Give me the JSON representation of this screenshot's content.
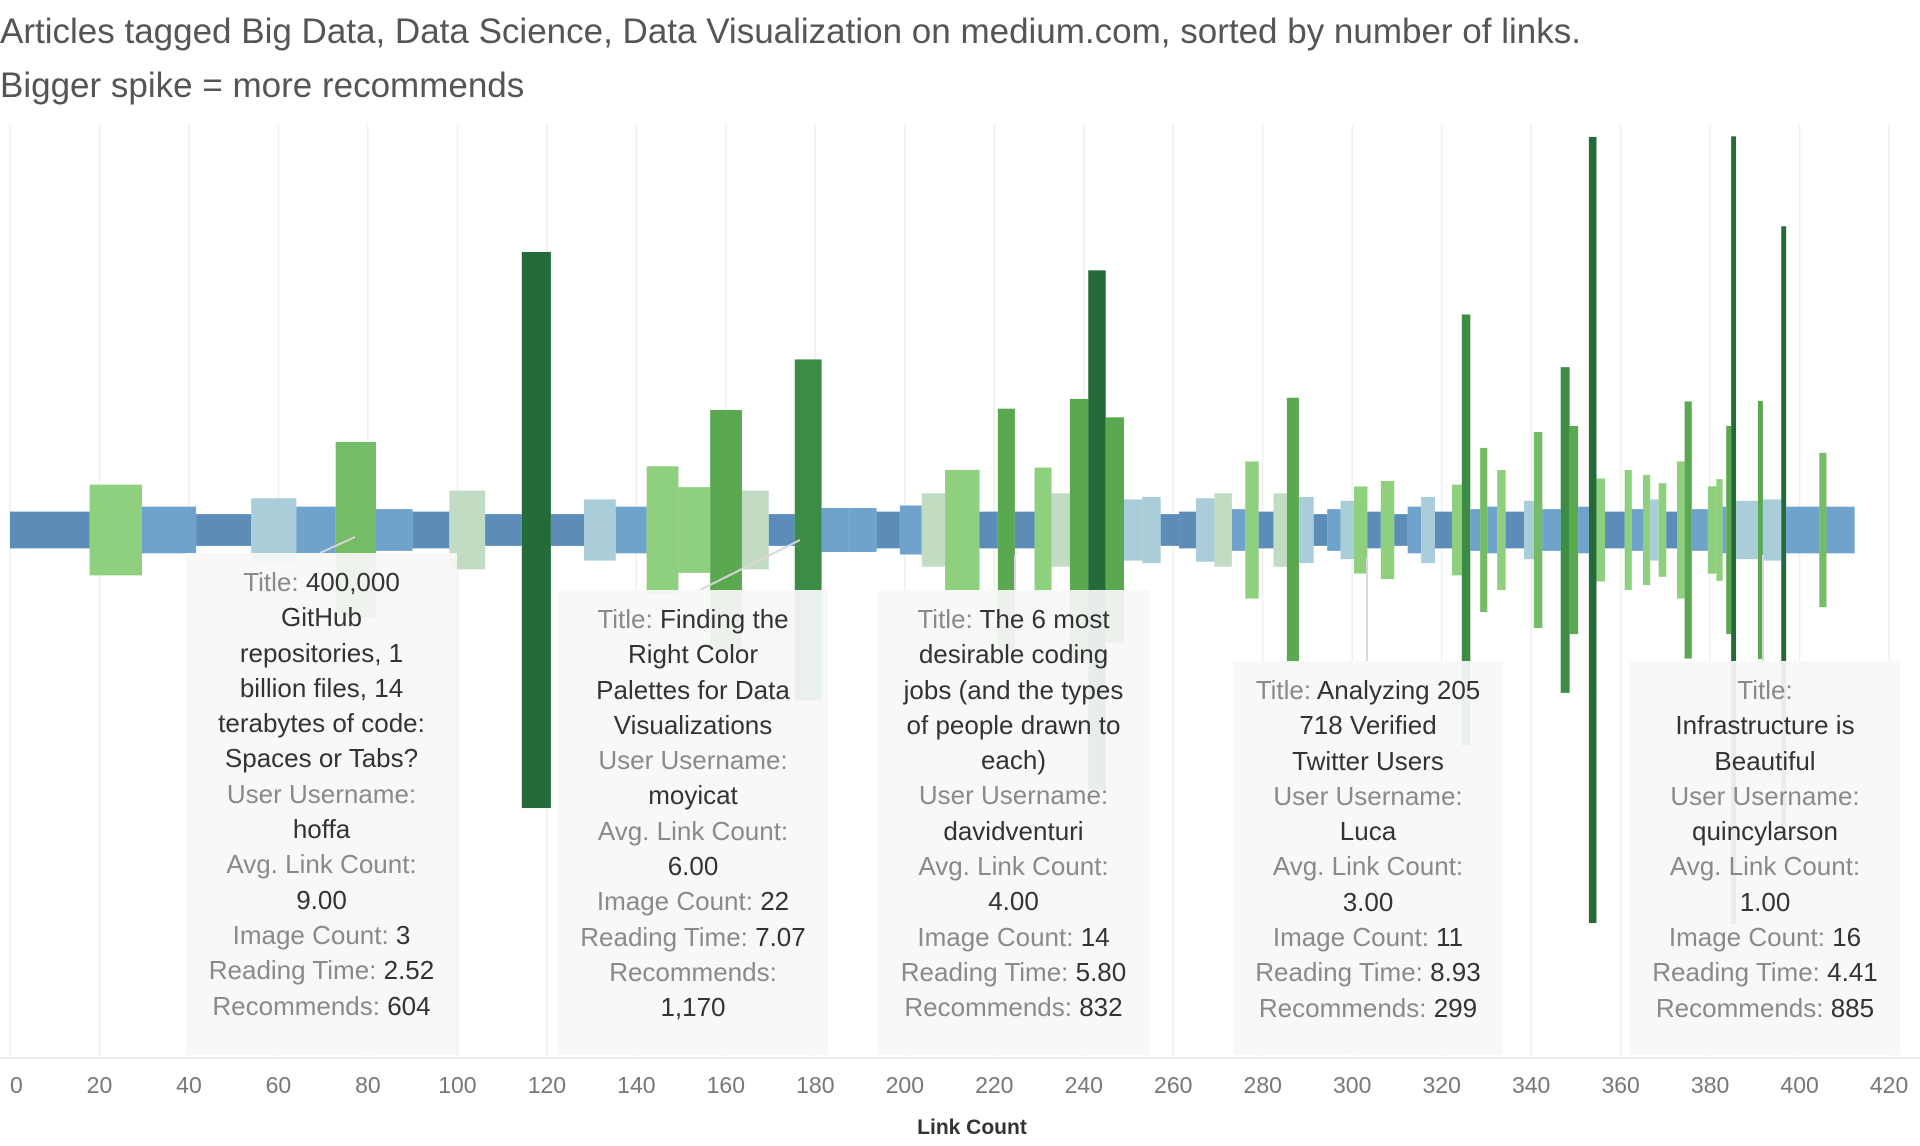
{
  "chart_data": {
    "type": "bar",
    "title": "Articles tagged Big Data, Data Science, Data Visualization on medium.com, sorted by number of links.",
    "subtitle": "Bigger spike = more recommends",
    "xlabel": "Link Count",
    "xlim": [
      0,
      420
    ],
    "xticks": [
      0,
      20,
      40,
      60,
      80,
      100,
      120,
      140,
      160,
      180,
      200,
      220,
      240,
      260,
      280,
      300,
      320,
      340,
      360,
      380,
      400,
      420
    ],
    "grid": "vertical",
    "encoding": "bars centered on baseline; height and color = recommends (blue low, green high)",
    "bars_fields": [
      "link_count_start",
      "link_count_end",
      "recommends"
    ],
    "bars": [
      [
        0,
        17.8,
        126
      ],
      [
        17.8,
        29.5,
        311
      ],
      [
        29.5,
        41.6,
        160
      ],
      [
        41.6,
        53.9,
        109
      ],
      [
        53.9,
        64.0,
        218
      ],
      [
        64.0,
        72.8,
        160
      ],
      [
        72.8,
        81.8,
        604
      ],
      [
        81.8,
        90.0,
        143
      ],
      [
        90.0,
        98.2,
        126
      ],
      [
        98.2,
        106.2,
        270
      ],
      [
        106.2,
        114.4,
        109
      ],
      [
        114.4,
        120.9,
        1907
      ],
      [
        120.9,
        128.3,
        109
      ],
      [
        128.3,
        135.4,
        210
      ],
      [
        135.4,
        142.3,
        160
      ],
      [
        142.3,
        149.4,
        437
      ],
      [
        149.4,
        156.5,
        294
      ],
      [
        156.5,
        163.6,
        823
      ],
      [
        163.6,
        169.6,
        270
      ],
      [
        169.6,
        175.4,
        109
      ],
      [
        175.4,
        181.4,
        1170
      ],
      [
        181.4,
        187.7,
        151
      ],
      [
        187.7,
        193.7,
        151
      ],
      [
        193.7,
        198.9,
        126
      ],
      [
        198.9,
        203.8,
        168
      ],
      [
        203.8,
        209.0,
        252
      ],
      [
        209.0,
        216.7,
        412
      ],
      [
        216.7,
        220.8,
        126
      ],
      [
        220.8,
        224.6,
        832
      ],
      [
        224.6,
        229.0,
        126
      ],
      [
        229.0,
        232.8,
        428
      ],
      [
        232.8,
        236.9,
        252
      ],
      [
        236.9,
        241.0,
        899
      ],
      [
        241.0,
        244.9,
        1781
      ],
      [
        244.9,
        249.0,
        773
      ],
      [
        249.0,
        253.1,
        210
      ],
      [
        253.1,
        257.2,
        227
      ],
      [
        257.2,
        261.3,
        109
      ],
      [
        261.3,
        265.1,
        126
      ],
      [
        265.1,
        269.2,
        218
      ],
      [
        269.2,
        273.1,
        252
      ],
      [
        273.1,
        276.1,
        143
      ],
      [
        276.1,
        279.1,
        470
      ],
      [
        279.1,
        282.4,
        126
      ],
      [
        282.4,
        285.4,
        252
      ],
      [
        285.4,
        288.1,
        907
      ],
      [
        288.1,
        291.4,
        227
      ],
      [
        291.4,
        294.4,
        109
      ],
      [
        294.4,
        297.4,
        143
      ],
      [
        297.4,
        300.4,
        200
      ],
      [
        300.4,
        303.4,
        299
      ],
      [
        303.4,
        306.4,
        126
      ],
      [
        306.4,
        309.4,
        336
      ],
      [
        309.4,
        312.4,
        109
      ],
      [
        312.4,
        315.4,
        160
      ],
      [
        315.4,
        318.5,
        227
      ],
      [
        318.5,
        322.3,
        126
      ],
      [
        322.3,
        324.5,
        311
      ],
      [
        324.5,
        326.4,
        1478
      ],
      [
        326.4,
        328.6,
        143
      ],
      [
        328.6,
        330.2,
        563
      ],
      [
        330.2,
        332.4,
        160
      ],
      [
        332.4,
        334.3,
        412
      ],
      [
        334.3,
        338.4,
        126
      ],
      [
        338.4,
        340.6,
        200
      ],
      [
        340.6,
        342.5,
        672
      ],
      [
        342.5,
        346.6,
        143
      ],
      [
        346.6,
        348.6,
        1117
      ],
      [
        348.6,
        350.5,
        714
      ],
      [
        350.5,
        352.9,
        160
      ],
      [
        352.9,
        354.6,
        2696
      ],
      [
        354.6,
        356.5,
        353
      ],
      [
        356.5,
        360.9,
        126
      ],
      [
        360.9,
        362.5,
        412
      ],
      [
        362.5,
        365.0,
        143
      ],
      [
        365.0,
        366.6,
        378
      ],
      [
        366.6,
        368.5,
        210
      ],
      [
        368.5,
        370.2,
        321
      ],
      [
        370.2,
        372.6,
        126
      ],
      [
        372.6,
        374.3,
        470
      ],
      [
        374.3,
        375.9,
        882
      ],
      [
        375.9,
        379.5,
        143
      ],
      [
        379.5,
        381.4,
        300
      ],
      [
        381.4,
        382.8,
        349
      ],
      [
        382.8,
        383.6,
        160
      ],
      [
        383.6,
        384.7,
        714
      ],
      [
        384.7,
        385.8,
        2700
      ],
      [
        385.8,
        390.7,
        200
      ],
      [
        390.7,
        391.8,
        885
      ],
      [
        391.8,
        395.9,
        210
      ],
      [
        395.9,
        397.0,
        2083
      ],
      [
        397.0,
        404.4,
        160
      ],
      [
        404.4,
        406.0,
        529
      ],
      [
        406.0,
        412.3,
        160
      ]
    ],
    "color_scale": [
      "#5b8db8",
      "#6fa3cc",
      "#a9cdd9",
      "#c2dbc3",
      "#8fd07f",
      "#74bd66",
      "#5aa84f",
      "#3c8c45",
      "#256b3a"
    ],
    "annotations": [
      {
        "lines": [
          [
            "Title: ",
            "400,000"
          ],
          [
            "",
            "GitHub"
          ],
          [
            "",
            "repositories, 1"
          ],
          [
            "",
            "billion files, 14"
          ],
          [
            "",
            "terabytes of code:"
          ],
          [
            "",
            "Spaces or Tabs?"
          ],
          [
            "User Username:",
            ""
          ],
          [
            "",
            "hoffa"
          ],
          [
            "Avg. Link Count:",
            ""
          ],
          [
            "",
            "9.00"
          ],
          [
            "Image Count: ",
            "3"
          ],
          [
            "Reading Time: ",
            "2.52"
          ],
          [
            "Recommends: ",
            "604"
          ]
        ]
      },
      {
        "lines": [
          [
            "Title: ",
            "Finding the"
          ],
          [
            "",
            "Right Color"
          ],
          [
            "",
            "Palettes for Data"
          ],
          [
            "",
            "Visualizations"
          ],
          [
            "User Username:",
            ""
          ],
          [
            "",
            "moyicat"
          ],
          [
            "Avg. Link Count:",
            ""
          ],
          [
            "",
            "6.00"
          ],
          [
            "Image Count: ",
            "22"
          ],
          [
            "Reading Time: ",
            "7.07"
          ],
          [
            "Recommends:",
            ""
          ],
          [
            "",
            "1,170"
          ]
        ]
      },
      {
        "lines": [
          [
            "Title: ",
            "The 6 most"
          ],
          [
            "",
            "desirable coding"
          ],
          [
            "",
            "jobs (and the types"
          ],
          [
            "",
            "of people drawn to"
          ],
          [
            "",
            "each)"
          ],
          [
            "User Username:",
            ""
          ],
          [
            "",
            "davidventuri"
          ],
          [
            "Avg. Link Count:",
            ""
          ],
          [
            "",
            "4.00"
          ],
          [
            "Image Count: ",
            "14"
          ],
          [
            "Reading Time: ",
            "5.80"
          ],
          [
            "Recommends: ",
            "832"
          ]
        ]
      },
      {
        "lines": [
          [
            "Title: ",
            "Analyzing 205"
          ],
          [
            "",
            "718 Verified"
          ],
          [
            "",
            "Twitter Users"
          ],
          [
            "User Username:",
            ""
          ],
          [
            "",
            "Luca"
          ],
          [
            "Avg. Link Count:",
            ""
          ],
          [
            "",
            "3.00"
          ],
          [
            "Image Count: ",
            "11"
          ],
          [
            "Reading Time: ",
            "8.93"
          ],
          [
            "Recommends: ",
            "299"
          ]
        ]
      },
      {
        "lines": [
          [
            "Title:",
            ""
          ],
          [
            "",
            "Infrastructure is"
          ],
          [
            "",
            "Beautiful"
          ],
          [
            "User Username:",
            ""
          ],
          [
            "",
            "quincylarson"
          ],
          [
            "Avg. Link Count:",
            ""
          ],
          [
            "",
            "1.00"
          ],
          [
            "Image Count: ",
            "16"
          ],
          [
            "Reading Time: ",
            "4.41"
          ],
          [
            "Recommends: ",
            "885"
          ]
        ]
      }
    ]
  }
}
